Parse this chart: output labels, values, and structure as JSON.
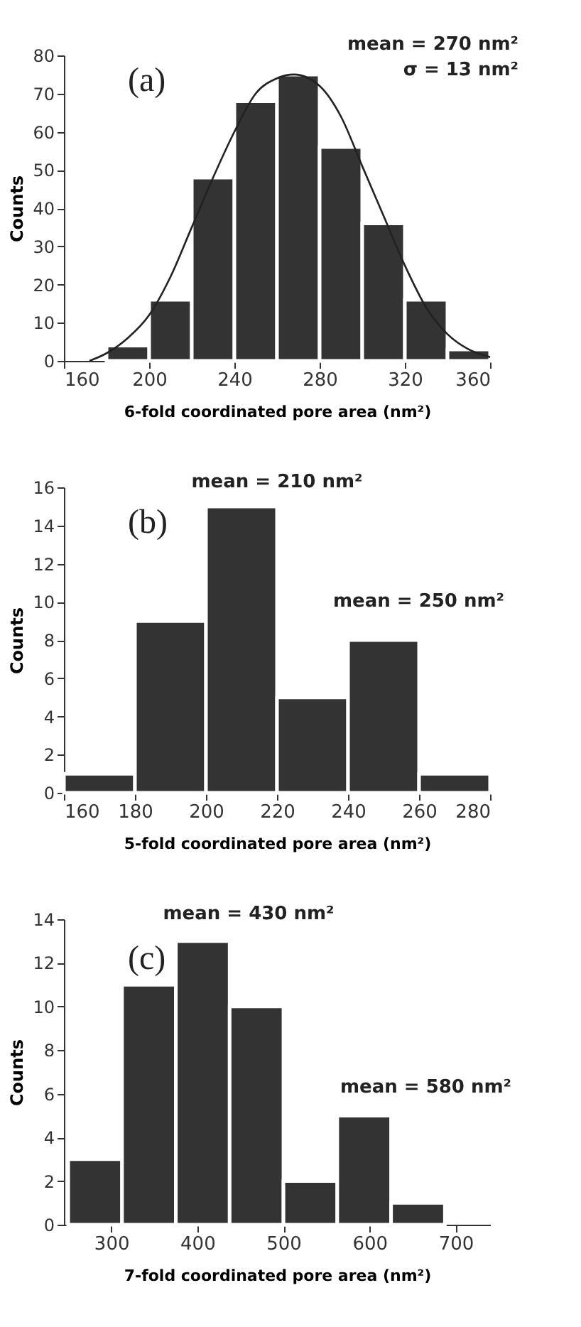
{
  "chart_data": [
    {
      "type": "histogram",
      "xlabel": "6-fold coordinated pore area (nm²)",
      "ylabel": "Counts",
      "annotations": [
        "(a)",
        "mean = 270 nm²",
        "σ = 13 nm²"
      ],
      "bins": [
        180,
        200,
        220,
        240,
        260,
        280,
        300,
        320,
        340,
        360
      ],
      "values": [
        4,
        16,
        48,
        68,
        75,
        56,
        36,
        16,
        3
      ],
      "color": "#333333",
      "series": [
        {
          "type": "line",
          "color": "#222222",
          "x": [
            172,
            180,
            190,
            200,
            210,
            220,
            230,
            240,
            250,
            260,
            268,
            280,
            290,
            300,
            310,
            320,
            330,
            340,
            350,
            360
          ],
          "values": [
            0,
            2,
            6,
            12,
            22,
            35,
            48,
            60,
            70,
            74,
            75,
            72,
            64,
            51,
            38,
            25,
            14,
            7,
            3,
            1
          ]
        }
      ],
      "xlim": [
        160,
        360
      ],
      "xticks": [
        160,
        200,
        240,
        280,
        320,
        360
      ],
      "ylim": [
        0,
        80
      ],
      "yticks": [
        0,
        10,
        20,
        30,
        40,
        50,
        60,
        70,
        80
      ],
      "grid": false
    },
    {
      "type": "histogram",
      "xlabel": "5-fold coordinated pore area (nm²)",
      "ylabel": "Counts",
      "annotations": [
        "(b)",
        "mean = 210 nm²",
        "mean = 250 nm²"
      ],
      "bins": [
        160,
        180,
        200,
        220,
        240,
        260,
        280
      ],
      "values": [
        1,
        9,
        15,
        5,
        8,
        1
      ],
      "color": "#333333",
      "xlim": [
        160,
        280
      ],
      "xticks": [
        160,
        180,
        200,
        220,
        240,
        260,
        280
      ],
      "ylim": [
        0,
        16
      ],
      "yticks": [
        0,
        2,
        4,
        6,
        8,
        10,
        12,
        14,
        16
      ],
      "grid": false
    },
    {
      "type": "histogram",
      "xlabel": "7-fold coordinated pore area (nm²)",
      "ylabel": "Counts",
      "annotations": [
        "(c)",
        "mean = 430 nm²",
        "mean = 580 nm²"
      ],
      "bins": [
        250,
        312.5,
        375,
        437.5,
        500,
        562.5,
        625,
        687.5
      ],
      "values": [
        3,
        11,
        13,
        10,
        2,
        5,
        1
      ],
      "color": "#333333",
      "xlim": [
        245,
        740
      ],
      "xticks": [
        300,
        400,
        500,
        600,
        700
      ],
      "ylim": [
        0,
        14
      ],
      "yticks": [
        0,
        2,
        4,
        6,
        8,
        10,
        12,
        14
      ],
      "grid": false
    }
  ]
}
